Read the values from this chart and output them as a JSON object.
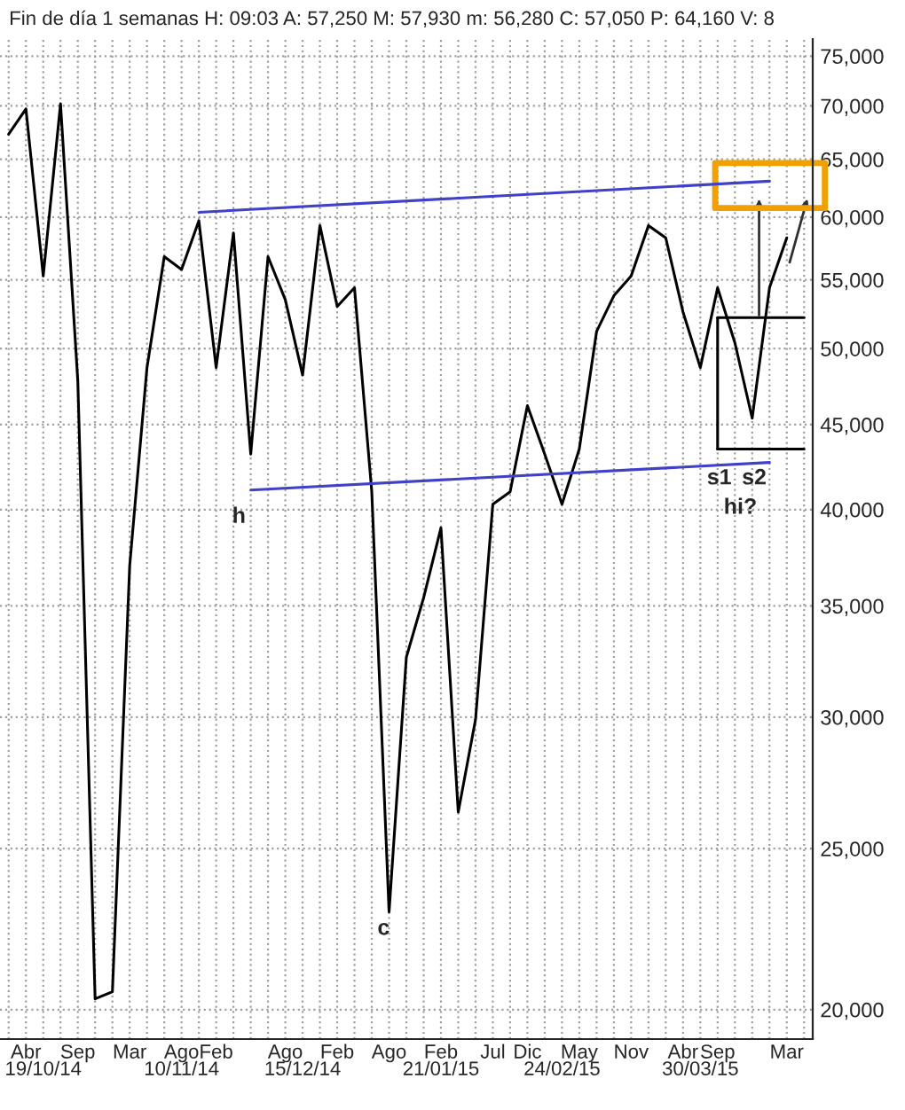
{
  "chart_data": {
    "type": "line",
    "title": "Fin de día 1 semanas H: 09:03 A: 57,250 M: 57,930 m: 56,280 C: 57,050 P: 64,160 V: 8",
    "log": true,
    "grid": true,
    "marker": "none",
    "line_style": "solid",
    "categories": [
      null,
      "Abr",
      "\n19/10/14",
      null,
      "Sep",
      null,
      null,
      "Mar",
      null,
      null,
      "Ago\n10/11/14",
      null,
      "Feb",
      null,
      null,
      null,
      "Ago",
      "\n15/12/14",
      null,
      "Feb",
      null,
      null,
      "Ago",
      null,
      null,
      "Feb\n21/01/15",
      null,
      null,
      "Jul",
      null,
      "Dic",
      null,
      "\n24/02/15",
      "May",
      null,
      null,
      "Nov",
      null,
      null,
      "Abr",
      "\n30/03/15",
      "Sep",
      null,
      null,
      null,
      "Mar",
      null
    ],
    "ylim": [
      19200,
      76800
    ],
    "yticks": [
      {
        "value": 20000,
        "label": "20,000"
      },
      {
        "value": 25000,
        "label": "25,000"
      },
      {
        "value": 30000,
        "label": "30,000"
      },
      {
        "value": 35000,
        "label": "35,000"
      },
      {
        "value": 40000,
        "label": "40,000"
      },
      {
        "value": 45000,
        "label": "45,000"
      },
      {
        "value": 50000,
        "label": "50,000"
      },
      {
        "value": 55000,
        "label": "55,000"
      },
      {
        "value": 60000,
        "label": "60,000"
      },
      {
        "value": 65000,
        "label": "65,000"
      },
      {
        "value": 70000,
        "label": "70,000"
      },
      {
        "value": 75000,
        "label": "75,000"
      }
    ],
    "series": [
      {
        "color": "#000000",
        "values": [
          67300,
          69700,
          55300,
          70200,
          47800,
          20300,
          20500,
          37000,
          48700,
          56800,
          55800,
          59700,
          48700,
          58700,
          43200,
          56800,
          53500,
          48200,
          59300,
          53000,
          54400,
          41000,
          22900,
          32600,
          35400,
          39000,
          26300,
          29900,
          40300,
          41000,
          46200,
          43200,
          40300,
          43500,
          51200,
          53800,
          55300,
          59300,
          58300,
          52600,
          48700,
          54400,
          50400,
          45400,
          54400,
          58300,
          null
        ]
      },
      {
        "color": "#4040c8",
        "values": [
          null,
          null,
          null,
          null,
          null,
          null,
          null,
          null,
          null,
          null,
          null,
          60400,
          null,
          null,
          null,
          null,
          null,
          null,
          null,
          null,
          null,
          null,
          null,
          null,
          null,
          null,
          null,
          null,
          null,
          null,
          null,
          null,
          null,
          null,
          null,
          null,
          null,
          null,
          null,
          null,
          null,
          null,
          null,
          null,
          63060,
          null,
          null
        ]
      },
      {
        "color": "#4040c8",
        "values": [
          null,
          null,
          null,
          null,
          null,
          null,
          null,
          null,
          null,
          null,
          null,
          null,
          null,
          null,
          41100,
          null,
          null,
          null,
          null,
          null,
          null,
          null,
          null,
          null,
          null,
          null,
          null,
          null,
          null,
          null,
          null,
          null,
          null,
          null,
          null,
          null,
          null,
          null,
          null,
          null,
          null,
          null,
          null,
          null,
          42700,
          null,
          null
        ]
      },
      {
        "color": "#000000",
        "values": [
          null,
          null,
          null,
          null,
          null,
          null,
          null,
          null,
          null,
          null,
          null,
          null,
          null,
          null,
          null,
          null,
          null,
          null,
          null,
          null,
          null,
          null,
          null,
          null,
          null,
          null,
          null,
          null,
          null,
          null,
          null,
          null,
          null,
          null,
          null,
          null,
          null,
          null,
          null,
          null,
          null,
          52200,
          null,
          null,
          null,
          null,
          52200
        ]
      },
      {
        "color": "#000000",
        "values": [
          null,
          null,
          null,
          null,
          null,
          null,
          null,
          null,
          null,
          null,
          null,
          null,
          null,
          null,
          null,
          null,
          null,
          null,
          null,
          null,
          null,
          null,
          null,
          null,
          null,
          null,
          null,
          null,
          null,
          null,
          null,
          null,
          null,
          null,
          null,
          null,
          null,
          null,
          null,
          null,
          null,
          43500,
          null,
          null,
          null,
          null,
          43500
        ]
      }
    ],
    "annotations": [
      "h",
      "c",
      {
        "text": "s1",
        "y": 43500
      },
      {
        "text": "s2",
        "y": 43500
      },
      "hi?"
    ]
  }
}
